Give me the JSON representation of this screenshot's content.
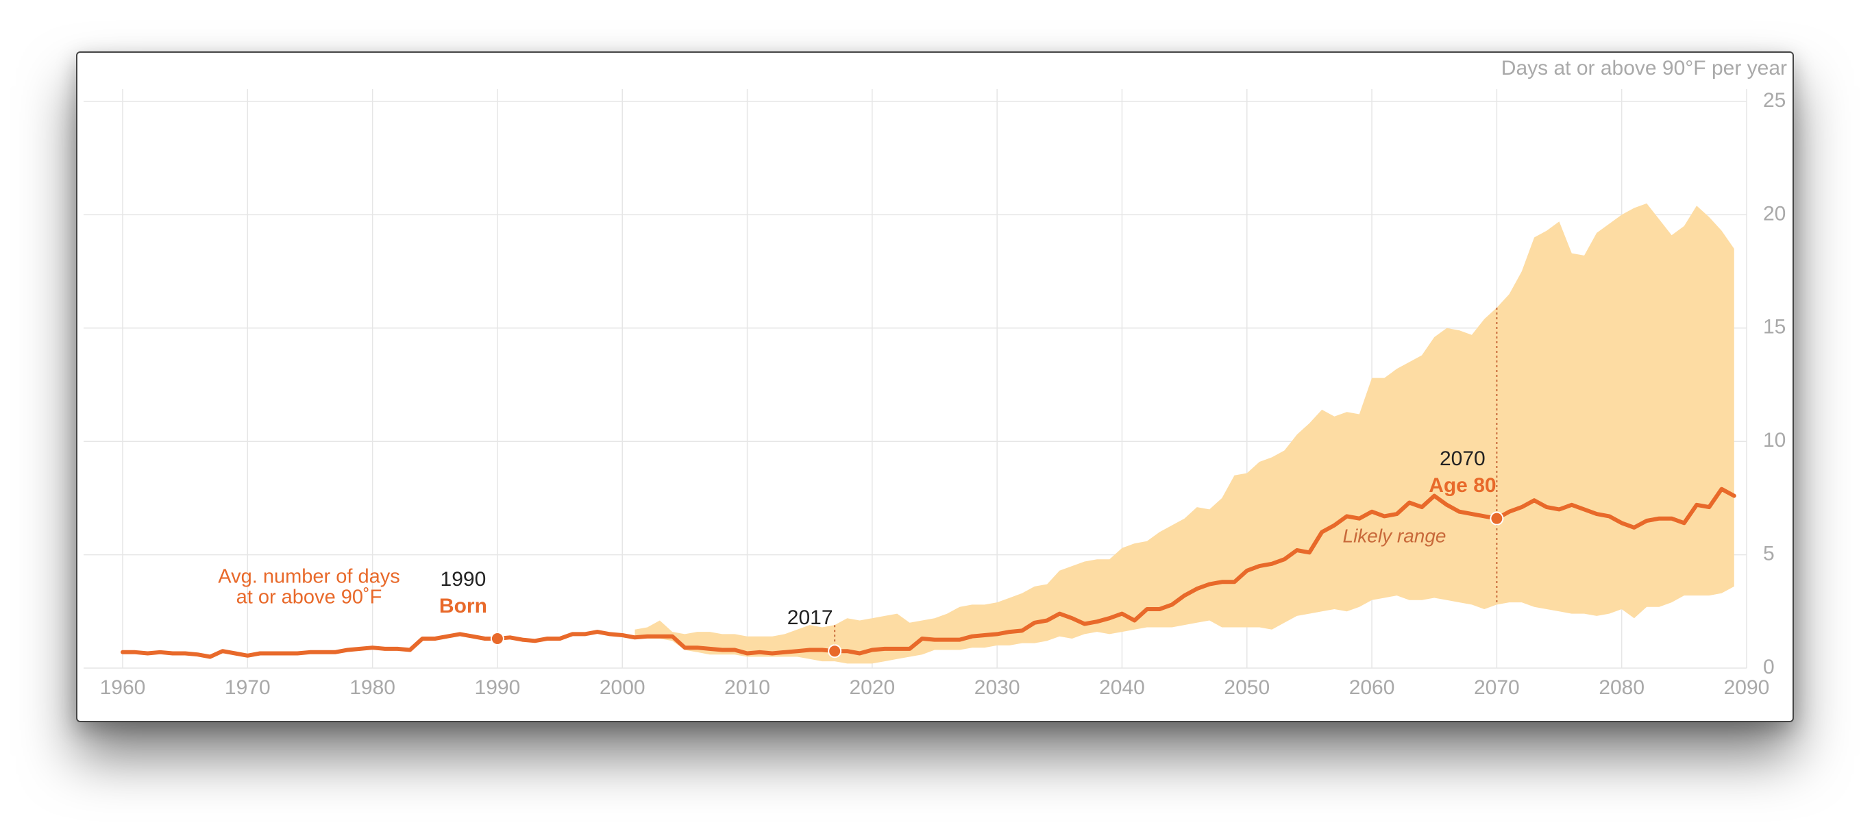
{
  "chart_data": {
    "type": "line",
    "axis_label": "Days at or above 90°F per year",
    "x": [
      1960,
      1961,
      1962,
      1963,
      1964,
      1965,
      1966,
      1967,
      1968,
      1969,
      1970,
      1971,
      1972,
      1973,
      1974,
      1975,
      1976,
      1977,
      1978,
      1979,
      1980,
      1981,
      1982,
      1983,
      1984,
      1985,
      1986,
      1987,
      1988,
      1989,
      1990,
      1991,
      1992,
      1993,
      1994,
      1995,
      1996,
      1997,
      1998,
      1999,
      2000,
      2001,
      2002,
      2003,
      2004,
      2005,
      2006,
      2007,
      2008,
      2009,
      2010,
      2011,
      2012,
      2013,
      2014,
      2015,
      2016,
      2017,
      2018,
      2019,
      2020,
      2021,
      2022,
      2023,
      2024,
      2025,
      2026,
      2027,
      2028,
      2029,
      2030,
      2031,
      2032,
      2033,
      2034,
      2035,
      2036,
      2037,
      2038,
      2039,
      2040,
      2041,
      2042,
      2043,
      2044,
      2045,
      2046,
      2047,
      2048,
      2049,
      2050,
      2051,
      2052,
      2053,
      2054,
      2055,
      2056,
      2057,
      2058,
      2059,
      2060,
      2061,
      2062,
      2063,
      2064,
      2065,
      2066,
      2067,
      2068,
      2069,
      2070,
      2071,
      2072,
      2073,
      2074,
      2075,
      2076,
      2077,
      2078,
      2079,
      2080,
      2081,
      2082,
      2083,
      2084,
      2085,
      2086,
      2087,
      2088,
      2089
    ],
    "series": [
      {
        "name_lines": [
          "Avg. number of days",
          "at or above 90˚F"
        ],
        "color": "#e8692a",
        "values": [
          0.7,
          0.7,
          0.65,
          0.7,
          0.65,
          0.65,
          0.6,
          0.5,
          0.75,
          0.65,
          0.55,
          0.65,
          0.65,
          0.65,
          0.65,
          0.7,
          0.7,
          0.7,
          0.8,
          0.85,
          0.9,
          0.85,
          0.85,
          0.8,
          1.3,
          1.3,
          1.4,
          1.5,
          1.4,
          1.3,
          1.3,
          1.35,
          1.25,
          1.2,
          1.3,
          1.3,
          1.5,
          1.5,
          1.6,
          1.5,
          1.45,
          1.35,
          1.4,
          1.4,
          1.4,
          0.9,
          0.9,
          0.85,
          0.8,
          0.8,
          0.65,
          0.7,
          0.65,
          0.7,
          0.75,
          0.8,
          0.8,
          0.75,
          0.75,
          0.65,
          0.8,
          0.85,
          0.85,
          0.85,
          1.3,
          1.25,
          1.25,
          1.25,
          1.4,
          1.45,
          1.5,
          1.6,
          1.65,
          2.0,
          2.1,
          2.4,
          2.2,
          1.95,
          2.05,
          2.2,
          2.4,
          2.1,
          2.6,
          2.6,
          2.8,
          3.2,
          3.5,
          3.7,
          3.8,
          3.8,
          4.3,
          4.5,
          4.6,
          4.8,
          5.2,
          5.1,
          6.0,
          6.3,
          6.7,
          6.6,
          6.9,
          6.7,
          6.8,
          7.3,
          7.1,
          7.6,
          7.2,
          6.9,
          6.8,
          6.7,
          6.6,
          6.9,
          7.1,
          7.4,
          7.1,
          7.0,
          7.2,
          7.0,
          6.8,
          6.7,
          6.4,
          6.2,
          6.5,
          6.6,
          6.6,
          6.4,
          7.2,
          7.1,
          7.9,
          7.6
        ]
      }
    ],
    "band": {
      "name": "Likely range",
      "color": "#fddca3",
      "x": [
        2001,
        2002,
        2003,
        2004,
        2005,
        2006,
        2007,
        2008,
        2009,
        2010,
        2011,
        2012,
        2013,
        2014,
        2015,
        2016,
        2017,
        2018,
        2019,
        2020,
        2021,
        2022,
        2023,
        2024,
        2025,
        2026,
        2027,
        2028,
        2029,
        2030,
        2031,
        2032,
        2033,
        2034,
        2035,
        2036,
        2037,
        2038,
        2039,
        2040,
        2041,
        2042,
        2043,
        2044,
        2045,
        2046,
        2047,
        2048,
        2049,
        2050,
        2051,
        2052,
        2053,
        2054,
        2055,
        2056,
        2057,
        2058,
        2059,
        2060,
        2061,
        2062,
        2063,
        2064,
        2065,
        2066,
        2067,
        2068,
        2069,
        2070,
        2071,
        2072,
        2073,
        2074,
        2075,
        2076,
        2077,
        2078,
        2079,
        2080,
        2081,
        2082,
        2083,
        2084,
        2085,
        2086,
        2087,
        2088,
        2089
      ],
      "low": [
        1.3,
        1.3,
        1.3,
        1.2,
        0.8,
        0.7,
        0.6,
        0.6,
        0.6,
        0.5,
        0.5,
        0.5,
        0.5,
        0.5,
        0.4,
        0.3,
        0.3,
        0.2,
        0.2,
        0.2,
        0.3,
        0.4,
        0.5,
        0.6,
        0.8,
        0.8,
        0.8,
        0.9,
        0.9,
        1.0,
        1.0,
        1.1,
        1.1,
        1.2,
        1.4,
        1.3,
        1.5,
        1.6,
        1.5,
        1.6,
        1.7,
        1.8,
        1.8,
        1.8,
        1.9,
        2.0,
        2.1,
        1.8,
        1.8,
        1.8,
        1.8,
        1.7,
        2.0,
        2.3,
        2.4,
        2.5,
        2.6,
        2.5,
        2.7,
        3.0,
        3.1,
        3.2,
        3.0,
        3.0,
        3.1,
        3.0,
        2.9,
        2.8,
        2.6,
        2.8,
        2.9,
        2.9,
        2.7,
        2.6,
        2.5,
        2.4,
        2.4,
        2.3,
        2.4,
        2.6,
        2.2,
        2.7,
        2.7,
        2.9,
        3.2,
        3.2,
        3.2,
        3.3,
        3.6
      ],
      "high": [
        1.7,
        1.8,
        2.1,
        1.6,
        1.5,
        1.6,
        1.6,
        1.5,
        1.5,
        1.4,
        1.4,
        1.4,
        1.5,
        1.7,
        1.9,
        1.8,
        1.9,
        2.2,
        2.1,
        2.2,
        2.3,
        2.4,
        2.0,
        2.1,
        2.2,
        2.4,
        2.7,
        2.8,
        2.8,
        2.9,
        3.1,
        3.3,
        3.6,
        3.7,
        4.3,
        4.5,
        4.7,
        4.8,
        4.8,
        5.3,
        5.5,
        5.6,
        6.0,
        6.3,
        6.6,
        7.1,
        7.0,
        7.5,
        8.5,
        8.6,
        9.1,
        9.3,
        9.6,
        10.3,
        10.8,
        11.4,
        11.1,
        11.3,
        11.2,
        12.8,
        12.8,
        13.2,
        13.5,
        13.8,
        14.6,
        15.0,
        14.9,
        14.7,
        15.4,
        15.9,
        16.5,
        17.5,
        19.0,
        19.3,
        19.7,
        18.3,
        18.2,
        19.2,
        19.6,
        20.0,
        20.3,
        20.5,
        19.8,
        19.1,
        19.5,
        20.4,
        19.9,
        19.3,
        18.5
      ]
    },
    "markers": [
      {
        "x": 1990,
        "value": 1.3,
        "label": "1990",
        "sublabel": "Born"
      },
      {
        "x": 2017,
        "value": 0.75,
        "label": "2017"
      },
      {
        "x": 2070,
        "value": 6.6,
        "label": "2070",
        "sublabel": "Age 80"
      }
    ],
    "xlim": [
      1960,
      2090
    ],
    "xticks": [
      1960,
      1970,
      1980,
      1990,
      2000,
      2010,
      2020,
      2030,
      2040,
      2050,
      2060,
      2070,
      2080,
      2090
    ],
    "ylim": [
      0,
      25
    ],
    "yticks": [
      0,
      5,
      10,
      15,
      20,
      25
    ],
    "grid": true
  }
}
